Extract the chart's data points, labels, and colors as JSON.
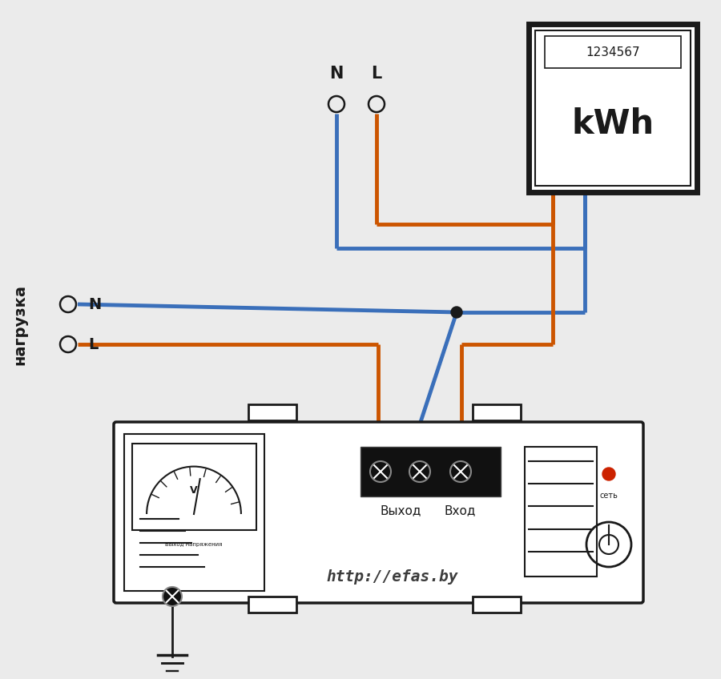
{
  "bg_color": "#ebebeb",
  "wire_blue": "#3a6fba",
  "wire_orange": "#cc5500",
  "wire_black": "#1a1a1a",
  "line_width": 3.5,
  "title_text": "http://efas.by",
  "meter_label": "kWh",
  "meter_digits": "1234567",
  "label_N_top": "N",
  "label_L_top": "L",
  "label_N_left": "N",
  "label_L_left": "L",
  "label_nagruzka": "нагрузка",
  "label_vyhod": "Выход",
  "label_vhod": "Вход",
  "label_set": "сеть"
}
